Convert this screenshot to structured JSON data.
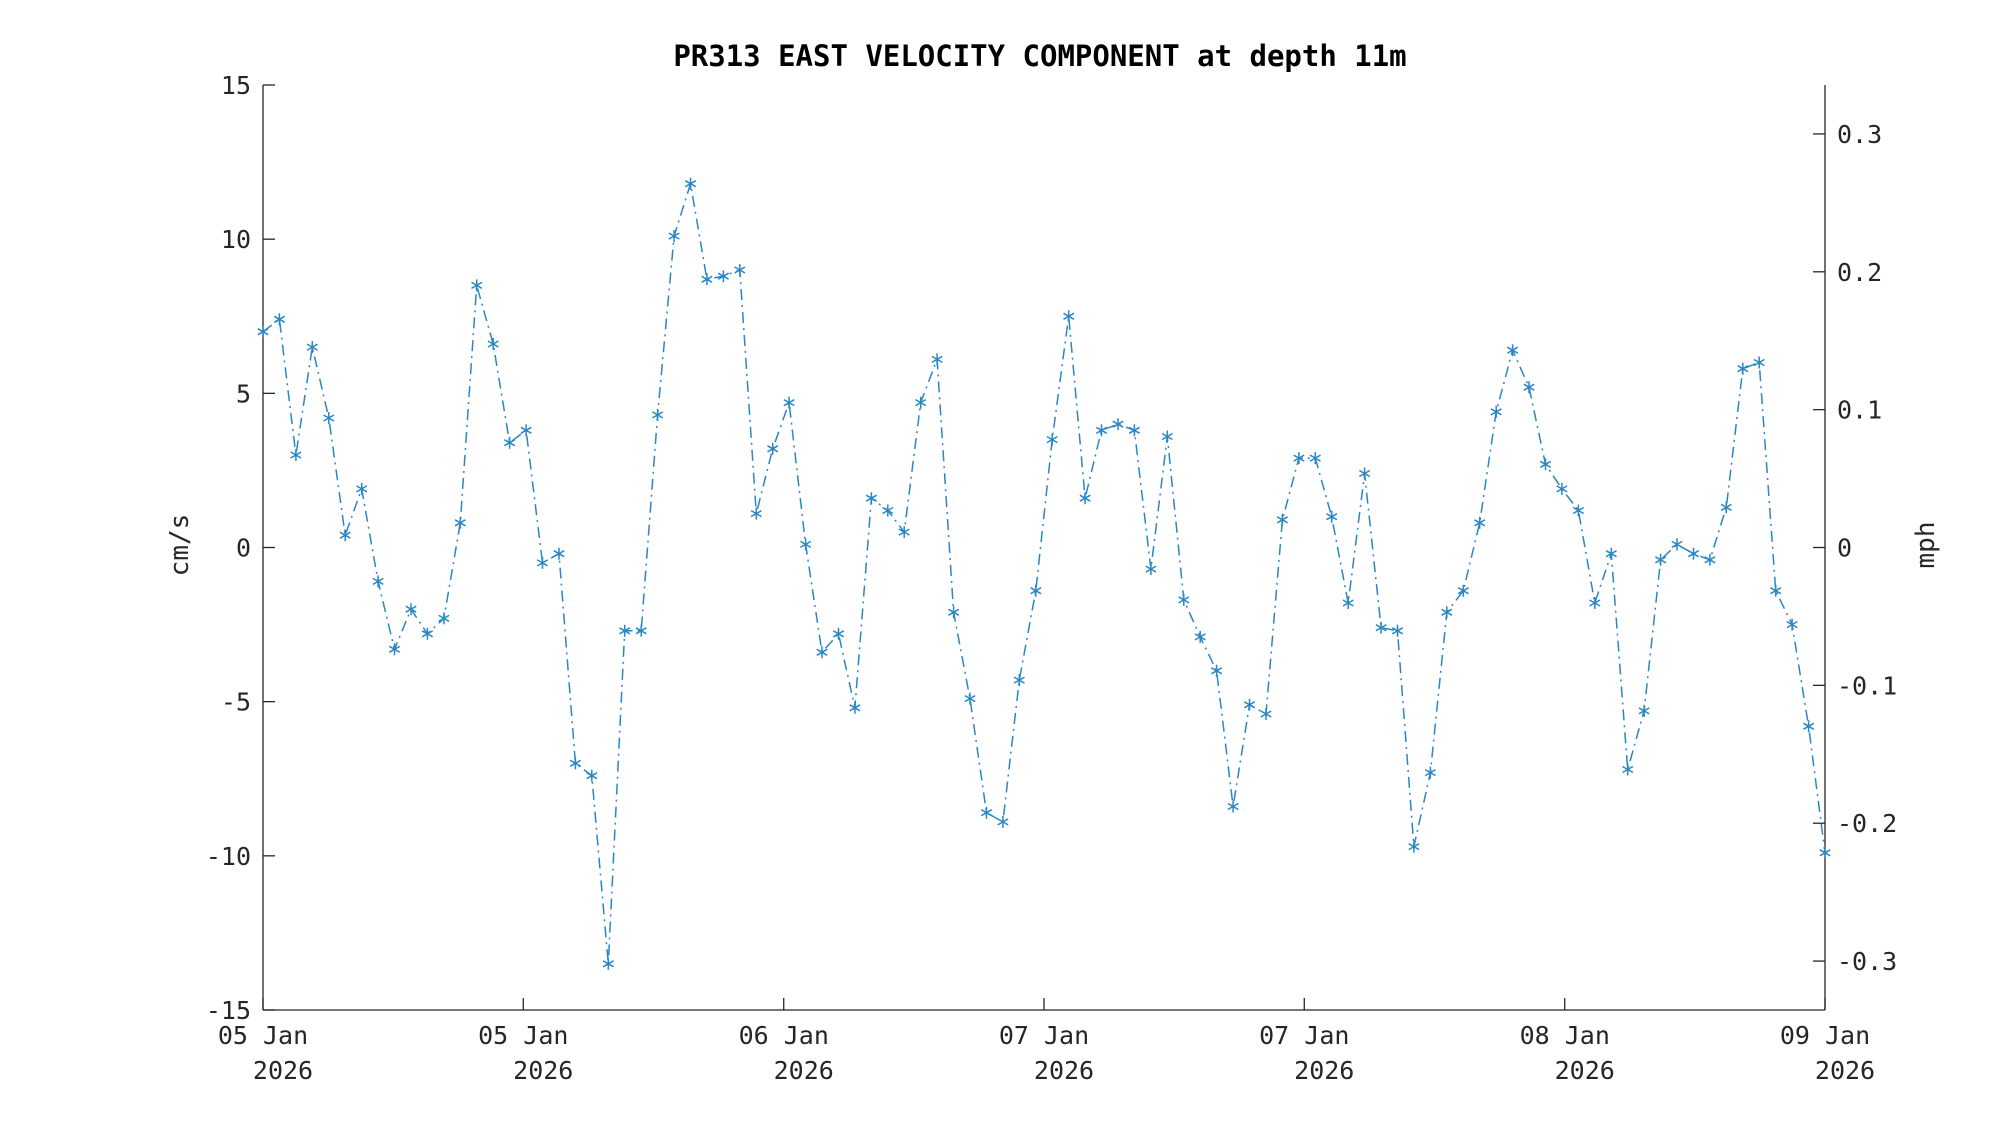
{
  "colors": {
    "series": "#2a86c5",
    "axis": "#262626",
    "background": "#ffffff"
  },
  "chart_data": {
    "type": "line",
    "title": "PR313 EAST VELOCITY COMPONENT at depth 11m",
    "xlabel": "",
    "ylabel": "cm/s",
    "ylabel_right": "mph",
    "ylim": [
      -15,
      15
    ],
    "ylim_right": [
      -0.3355,
      0.3355
    ],
    "xlim": [
      0,
      95
    ],
    "grid": false,
    "line_style": "dash-dot",
    "marker": "asterisk",
    "yticks": [
      -15,
      -10,
      -5,
      0,
      5,
      10,
      15
    ],
    "ytick_labels": [
      "-15",
      "-10",
      "-5",
      "0",
      "5",
      "10",
      "15"
    ],
    "yticks_right": [
      -0.3,
      -0.2,
      -0.1,
      0,
      0.1,
      0.2,
      0.3
    ],
    "ytick_labels_right": [
      "-0.3",
      "-0.2",
      "-0.1",
      "0",
      "0.1",
      "0.2",
      "0.3"
    ],
    "xticks": [
      0,
      15.83,
      31.67,
      47.5,
      63.33,
      79.17,
      95
    ],
    "xtick_labels": [
      [
        "05 Jan",
        "2026"
      ],
      [
        "05 Jan",
        "2026"
      ],
      [
        "06 Jan",
        "2026"
      ],
      [
        "07 Jan",
        "2026"
      ],
      [
        "07 Jan",
        "2026"
      ],
      [
        "08 Jan",
        "2026"
      ],
      [
        "09 Jan",
        "2026"
      ]
    ],
    "series": [
      {
        "values": [
          7.0,
          7.4,
          3.0,
          6.5,
          4.2,
          0.4,
          1.9,
          -1.1,
          -3.3,
          -2.0,
          -2.8,
          -2.3,
          0.8,
          8.5,
          6.6,
          3.4,
          3.8,
          -0.5,
          -0.2,
          -7.0,
          -7.4,
          -13.5,
          -2.7,
          -2.7,
          4.3,
          10.1,
          11.8,
          8.7,
          8.8,
          9.0,
          1.1,
          3.2,
          4.7,
          0.1,
          -3.4,
          -2.8,
          -5.2,
          1.6,
          1.2,
          0.5,
          4.7,
          6.1,
          -2.1,
          -4.9,
          -8.6,
          -8.9,
          -4.3,
          -1.4,
          3.5,
          7.5,
          1.6,
          3.8,
          4.0,
          3.8,
          -0.7,
          3.6,
          -1.7,
          -2.9,
          -4.0,
          -8.4,
          -5.1,
          -5.4,
          0.9,
          2.9,
          2.9,
          1.0,
          -1.8,
          2.4,
          -2.6,
          -2.7,
          -9.7,
          -7.3,
          -2.1,
          -1.4,
          0.8,
          4.4,
          6.4,
          5.2,
          2.7,
          1.9,
          1.2,
          -1.8,
          -0.2,
          -7.2,
          -5.3,
          -0.4,
          0.1,
          -0.2,
          -0.4,
          1.3,
          5.8,
          6.0,
          -1.4,
          -2.5,
          -5.8,
          -9.9
        ]
      }
    ]
  }
}
